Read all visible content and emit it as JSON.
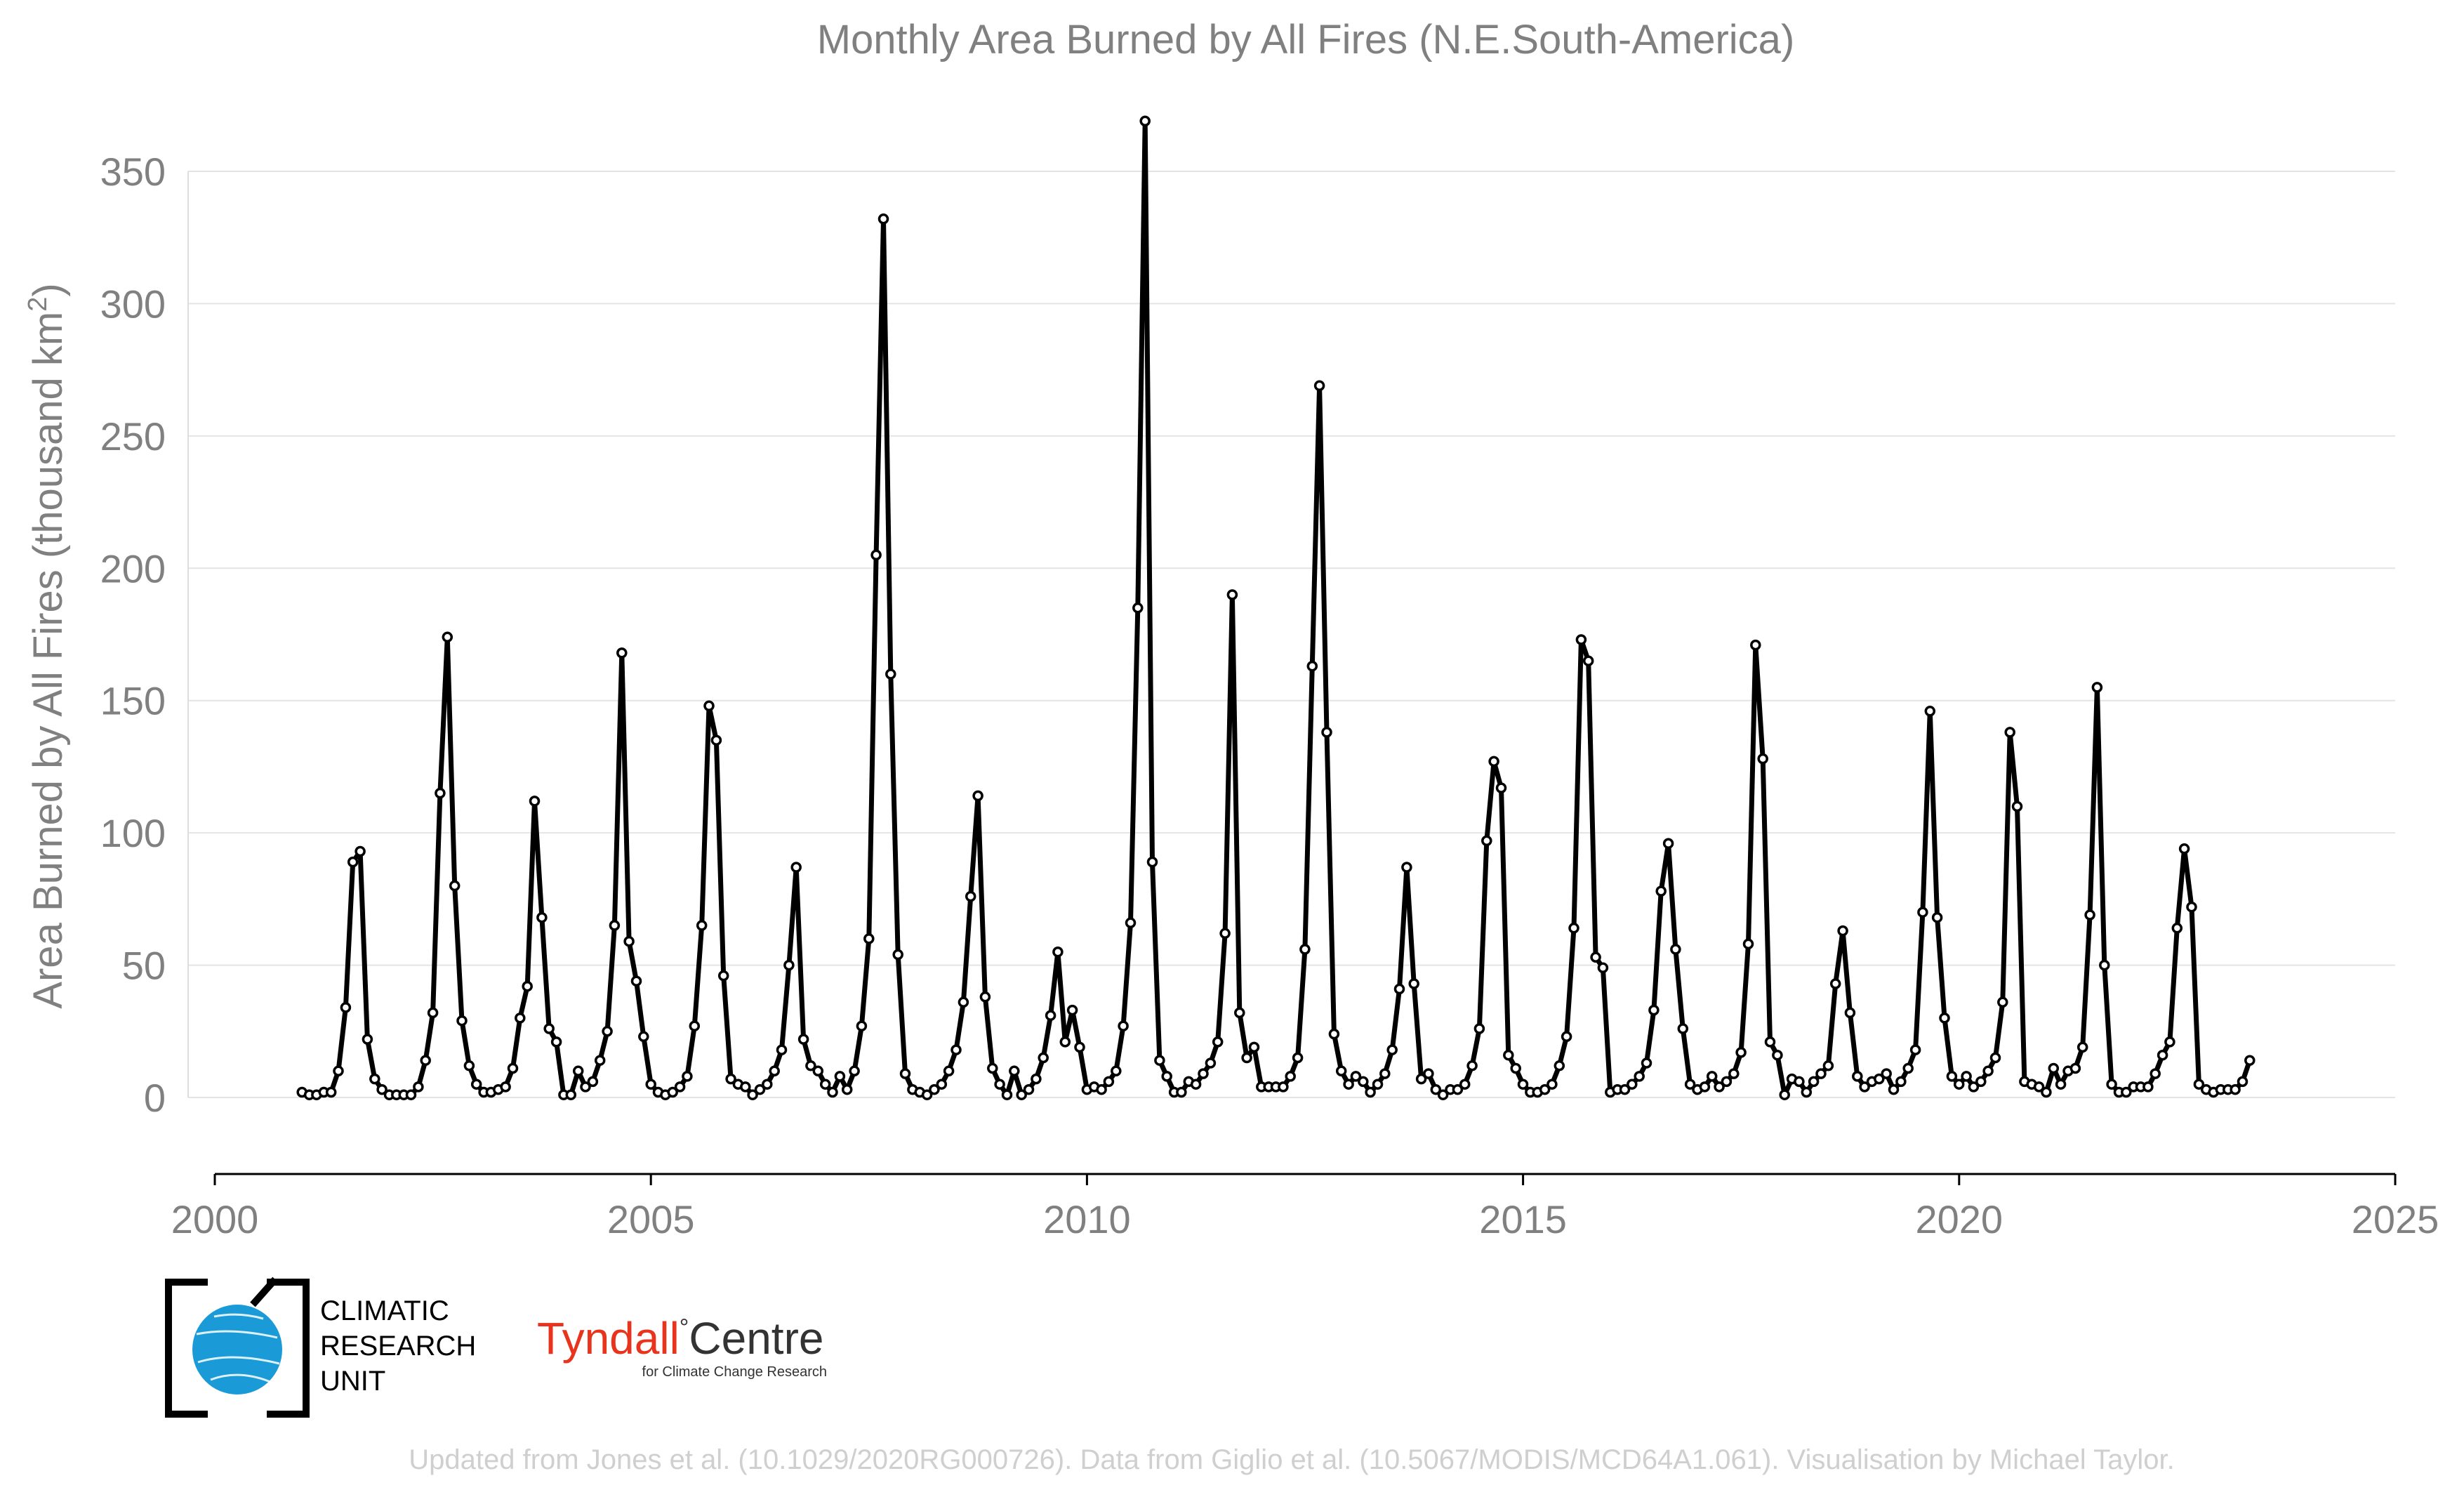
{
  "chart_data": {
    "type": "line",
    "title": "Monthly Area Burned by All Fires (N.E.South-America)",
    "ylabel": "Area Burned by All Fires (thousand km",
    "ylabel_sup": "2",
    "ylabel_end": ")",
    "xlim": [
      2000,
      2025
    ],
    "ylim": [
      -30,
      370
    ],
    "x_ticks": [
      2000,
      2005,
      2010,
      2015,
      2020,
      2025
    ],
    "y_ticks": [
      0,
      50,
      100,
      150,
      200,
      250,
      300,
      350
    ],
    "grid": "horizontal",
    "line_color": "#000000",
    "marker_fill": "#ffffff",
    "series": [
      {
        "x_start": 2001.0,
        "step": 0.08333,
        "values": [
          2,
          1,
          1,
          2,
          2,
          10,
          34,
          89,
          93,
          22,
          7,
          3,
          1,
          1,
          1,
          1,
          4,
          14,
          32,
          115,
          174,
          80,
          29,
          12,
          5,
          2,
          2,
          3,
          4,
          11,
          30,
          42,
          112,
          68,
          26,
          21,
          1,
          1,
          10,
          4,
          6,
          14,
          25,
          65,
          168,
          59,
          44,
          23,
          5,
          2,
          1,
          2,
          4,
          8,
          27,
          65,
          148,
          135,
          46,
          7,
          5,
          4,
          1,
          3,
          5,
          10,
          18,
          50,
          87,
          22,
          12,
          10,
          5,
          2,
          8,
          3,
          10,
          27,
          60,
          205,
          332,
          160,
          54,
          9,
          3,
          2,
          1,
          3,
          5,
          10,
          18,
          36,
          76,
          114,
          38,
          11,
          5,
          1,
          10,
          1,
          3,
          7,
          15,
          31,
          55,
          21,
          33,
          19,
          3,
          4,
          3,
          6,
          10,
          27,
          66,
          185,
          369,
          89,
          14,
          8,
          2,
          2,
          6,
          5,
          9,
          13,
          21,
          62,
          190,
          32,
          15,
          19,
          4,
          4,
          4,
          4,
          8,
          15,
          56,
          163,
          269,
          138,
          24,
          10,
          5,
          8,
          6,
          2,
          5,
          9,
          18,
          41,
          87,
          43,
          7,
          9,
          3,
          1,
          3,
          3,
          5,
          12,
          26,
          97,
          127,
          117,
          16,
          11,
          5,
          2,
          2,
          3,
          5,
          12,
          23,
          64,
          173,
          165,
          53,
          49,
          2,
          3,
          3,
          5,
          8,
          13,
          33,
          78,
          96,
          56,
          26,
          5,
          3,
          4,
          8,
          4,
          6,
          9,
          17,
          58,
          171,
          128,
          21,
          16,
          1,
          7,
          6,
          2,
          6,
          9,
          12,
          43,
          63,
          32,
          8,
          4,
          6,
          7,
          9,
          3,
          6,
          11,
          18,
          70,
          146,
          68,
          30,
          8,
          5,
          8,
          4,
          6,
          10,
          15,
          36,
          138,
          110,
          6,
          5,
          4,
          2,
          11,
          5,
          10,
          11,
          19,
          69,
          155,
          50,
          5,
          2,
          2,
          4,
          4,
          4,
          9,
          16,
          21,
          64,
          94,
          72,
          5,
          3,
          2,
          3,
          3,
          3,
          6,
          14
        ]
      }
    ]
  },
  "logos": {
    "cru_lines": [
      "CLIMATIC",
      "RESEARCH",
      "UNIT"
    ],
    "tyndall_name": "Tyndall",
    "tyndall_degree": "°",
    "tyndall_centre": "Centre",
    "tyndall_sub": "for Climate Change Research",
    "tyndall_color": "#e8331d",
    "cru_globe_color": "#1a9ad6"
  },
  "footer": {
    "credit": "Updated from Jones et al. (10.1029/2020RG000726). Data from Giglio et al. (10.5067/MODIS/MCD64A1.061). Visualisation by Michael Taylor."
  }
}
